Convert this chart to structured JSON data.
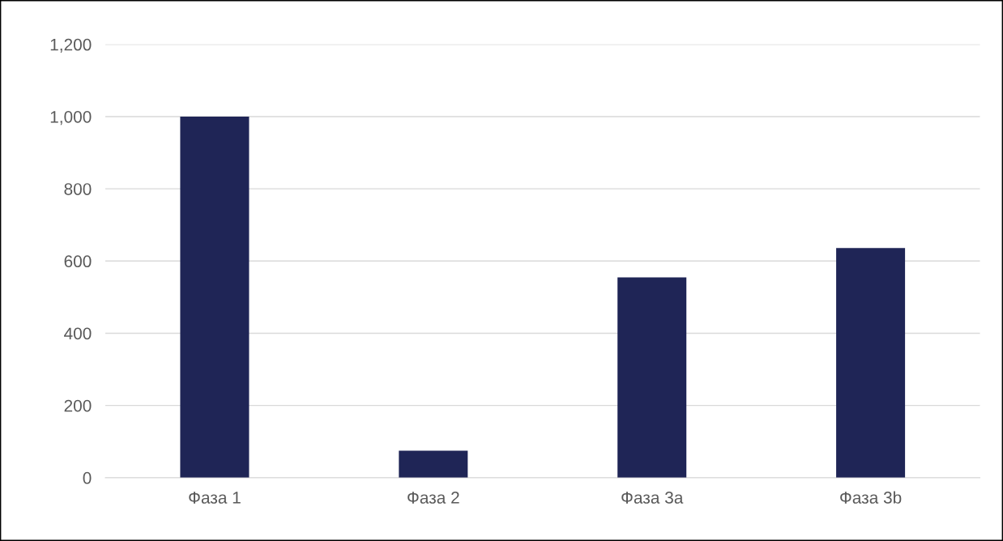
{
  "chart_data": {
    "type": "bar",
    "categories": [
      "Фаза 1",
      "Фаза 2",
      "Фаза 3а",
      "Фаза 3b"
    ],
    "values": [
      1000,
      75,
      555,
      636
    ],
    "color": "#1f2556",
    "ylim": [
      0,
      1200
    ],
    "yticks": [
      0,
      200,
      400,
      600,
      800,
      {
        "value": 1000,
        "label": "1,000"
      },
      {
        "value": 1200,
        "label": "1,200"
      }
    ],
    "grid": "y"
  }
}
